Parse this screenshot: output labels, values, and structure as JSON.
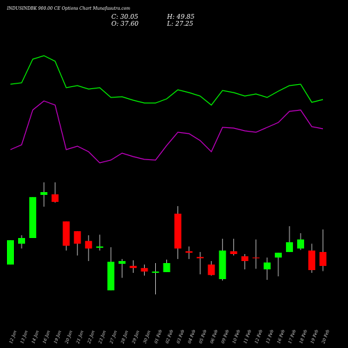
{
  "chart_data": {
    "type": "candlestick",
    "title": "INDUSINDBK 900.00 CE Options  Chart Munafasutra.com",
    "stats": [
      {
        "label": "C: 30.05"
      },
      {
        "label": "H: 49.85"
      },
      {
        "label": "O: 37.60"
      },
      {
        "label": "L: 27.25"
      }
    ],
    "categories": [
      "12 Jan",
      "13 Jan",
      "14 Jan",
      "16 Jan",
      "19 Jan",
      "20 Jan",
      "21 Jan",
      "22 Jan",
      "23 Jan",
      "27 Jan",
      "28 Jan",
      "29 Jan",
      "30 Jan",
      "01 Feb",
      "02 Feb",
      "03 Feb",
      "04 Feb",
      "05 Feb",
      "06 Feb",
      "09 Feb",
      "10 Feb",
      "11 Feb",
      "12 Feb",
      "13 Feb",
      "16 Feb",
      "17 Feb",
      "18 Feb",
      "19 Feb",
      "20 Feb"
    ],
    "open": [
      30.8,
      42.1,
      45.2,
      68.6,
      68.9,
      54.2,
      48.9,
      43.6,
      39.9,
      16.8,
      31.2,
      30.1,
      28.9,
      26.3,
      26.7,
      58.4,
      38.0,
      34.9,
      30.8,
      22.9,
      38.0,
      35.3,
      34.6,
      28.2,
      34.6,
      37.6,
      39.5,
      38.4,
      37.6
    ],
    "high": [
      44.0,
      46.7,
      67.4,
      75.4,
      75.4,
      54.2,
      48.9,
      46.7,
      47.0,
      40.2,
      33.8,
      33.1,
      30.8,
      31.6,
      33.5,
      62.5,
      40.6,
      37.6,
      32.7,
      44.8,
      44.8,
      36.5,
      44.4,
      34.6,
      37.2,
      51.6,
      47.8,
      42.1,
      49.85
    ],
    "low": [
      30.8,
      39.5,
      45.2,
      62.2,
      64.4,
      38.4,
      35.7,
      32.7,
      38.4,
      16.8,
      23.6,
      26.3,
      24.8,
      14.6,
      26.7,
      33.8,
      33.8,
      25.5,
      24.8,
      22.1,
      35.7,
      28.2,
      28.5,
      22.5,
      24.4,
      37.6,
      38.7,
      26.3,
      27.25
    ],
    "close": [
      44.0,
      45.2,
      67.4,
      70.1,
      64.8,
      41.0,
      42.1,
      39.5,
      40.6,
      32.3,
      32.7,
      28.9,
      27.0,
      27.0,
      31.6,
      39.5,
      37.2,
      34.2,
      25.1,
      38.4,
      36.5,
      32.7,
      34.2,
      31.9,
      37.2,
      42.9,
      44.4,
      27.8,
      30.05
    ],
    "up_color": "#00ff00",
    "down_color": "#ff0000",
    "lines": [
      {
        "color": "#00ff00",
        "values": [
          379,
          381,
          415,
          420,
          412,
          374,
          377,
          372,
          374,
          360,
          361,
          356,
          352,
          352,
          358,
          371,
          367,
          362,
          349,
          370,
          367,
          362,
          365,
          360,
          369,
          377,
          379,
          353,
          357
        ]
      },
      {
        "color": "#cc00cc",
        "values": [
          285,
          292,
          342,
          355,
          349,
          285,
          290,
          282,
          266,
          270,
          280,
          275,
          271,
          270,
          291,
          310,
          308,
          298,
          282,
          317,
          316,
          312,
          310,
          317,
          324,
          340,
          342,
          318,
          315
        ]
      }
    ]
  }
}
